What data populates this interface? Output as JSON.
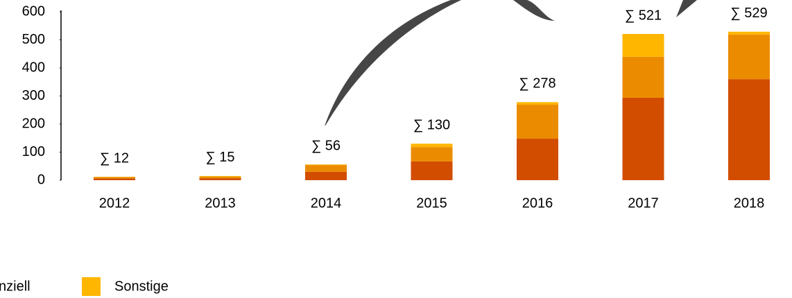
{
  "chart_data": {
    "type": "stacked_bar",
    "categories": [
      "2012",
      "2013",
      "2014",
      "2015",
      "2016",
      "2017",
      "2018"
    ],
    "series": [
      {
        "color": "#d24d00",
        "values": [
          6,
          7,
          30,
          67,
          148,
          294,
          360
        ]
      },
      {
        "name": "nziell",
        "color": "#eb8c00",
        "values": [
          5,
          6,
          24,
          51,
          121,
          146,
          159
        ]
      },
      {
        "name": "Sonstige",
        "color": "#ffb600",
        "values": [
          1,
          2,
          2,
          12,
          9,
          81,
          10
        ]
      }
    ],
    "totals": [
      12,
      15,
      56,
      130,
      278,
      521,
      529
    ],
    "value_labels": [
      "∑ 12",
      "∑ 15",
      "∑ 56",
      "∑ 130",
      "∑ 278",
      "∑ 521",
      "∑ 529"
    ],
    "ylim": [
      0,
      600
    ],
    "yticks": [
      0,
      100,
      200,
      300,
      400,
      500,
      600
    ],
    "grid": false
  }
}
